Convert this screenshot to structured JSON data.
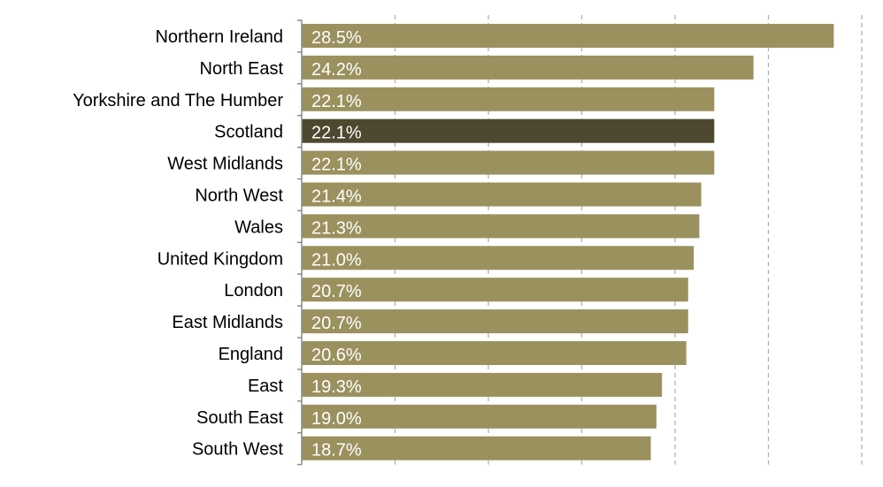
{
  "chart_data": {
    "type": "bar",
    "orientation": "horizontal",
    "categories": [
      "Northern Ireland",
      "North East",
      "Yorkshire and The Humber",
      "Scotland",
      "West Midlands",
      "North West",
      "Wales",
      "United Kingdom",
      "London",
      "East Midlands",
      "England",
      "East",
      "South East",
      "South West"
    ],
    "values": [
      28.5,
      24.2,
      22.1,
      22.1,
      22.1,
      21.4,
      21.3,
      21.0,
      20.7,
      20.7,
      20.6,
      19.3,
      19.0,
      18.7
    ],
    "data_labels": [
      "28.5%",
      "24.2%",
      "22.1%",
      "22.1%",
      "22.1%",
      "21.4%",
      "21.3%",
      "21.0%",
      "20.7%",
      "20.7%",
      "20.6%",
      "19.3%",
      "19.0%",
      "18.7%"
    ],
    "highlighted": "Scotland",
    "xlim": [
      0,
      30
    ],
    "x_gridlines": [
      5,
      10,
      15,
      20,
      25,
      30
    ],
    "grid": "vertical dashed",
    "title": "",
    "xlabel": "",
    "ylabel": "",
    "colors": {
      "bar": "#9b915e",
      "highlight": "#4e4830",
      "label": "#ffffff",
      "grid": "#b0b0b0",
      "axis": "#8c8c8c"
    }
  }
}
